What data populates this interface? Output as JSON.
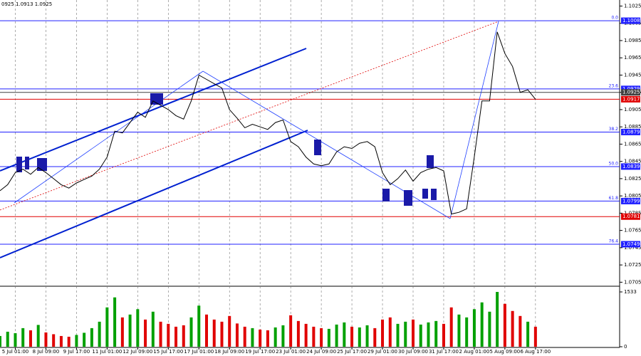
{
  "chart_data": {
    "type": "line",
    "header": "0925 1.0913 1.0925",
    "price": {
      "color": "#000000",
      "values": [
        1.0811,
        1.0818,
        1.0832,
        1.0836,
        1.083,
        1.0838,
        1.0832,
        1.0825,
        1.0818,
        1.0814,
        1.082,
        1.0824,
        1.0828,
        1.0836,
        1.085,
        1.088,
        1.0878,
        1.089,
        1.0902,
        1.0896,
        1.0915,
        1.091,
        1.0905,
        1.0898,
        1.0894,
        1.0915,
        1.0945,
        1.094,
        1.0935,
        1.093,
        1.0905,
        1.0895,
        1.0884,
        1.0888,
        1.0885,
        1.0882,
        1.089,
        1.0893,
        1.0868,
        1.0862,
        1.085,
        1.0842,
        1.084,
        1.0842,
        1.0856,
        1.0862,
        1.086,
        1.0866,
        1.0868,
        1.0862,
        1.0832,
        1.0818,
        1.0825,
        1.0835,
        1.0822,
        1.0832,
        1.0836,
        1.0838,
        1.0834,
        1.0784,
        1.0786,
        1.079,
        1.085,
        1.0915,
        1.0915,
        1.0995,
        1.097,
        1.0955,
        1.0925,
        1.0928,
        1.0917
      ]
    },
    "volume": {
      "up_color": "#00a000",
      "down_color": "#e00000",
      "values": [
        300,
        420,
        380,
        520,
        460,
        610,
        400,
        350,
        300,
        280,
        330,
        390,
        520,
        700,
        1100,
        1380,
        820,
        900,
        1050,
        760,
        980,
        700,
        640,
        560,
        600,
        820,
        1150,
        900,
        760,
        700,
        860,
        650,
        560,
        520,
        480,
        460,
        540,
        600,
        880,
        720,
        640,
        560,
        520,
        500,
        620,
        680,
        560,
        540,
        600,
        520,
        760,
        820,
        640,
        700,
        760,
        620,
        680,
        720,
        640,
        1100,
        900,
        820,
        1050,
        1240,
        980,
        1533,
        1200,
        1000,
        860,
        700,
        560
      ]
    },
    "xlim": [
      0,
      81
    ],
    "xticks": [
      {
        "value": 2,
        "label": "5 Jul 01:00"
      },
      {
        "value": 6,
        "label": "8 Jul 09:00"
      },
      {
        "value": 10,
        "label": "9 Jul 17:00"
      },
      {
        "value": 14,
        "label": "11 Jul 01:00"
      },
      {
        "value": 18,
        "label": "12 Jul 09:00"
      },
      {
        "value": 22,
        "label": "15 Jul 17:00"
      },
      {
        "value": 26,
        "label": "17 Jul 01:00"
      },
      {
        "value": 30,
        "label": "18 Jul 09:00"
      },
      {
        "value": 34,
        "label": "19 Jul 17:00"
      },
      {
        "value": 38,
        "label": "23 Jul 01:00"
      },
      {
        "value": 42,
        "label": "24 Jul 09:00"
      },
      {
        "value": 46,
        "label": "25 Jul 17:00"
      },
      {
        "value": 50,
        "label": "29 Jul 01:00"
      },
      {
        "value": 54,
        "label": "30 Jul 09:00"
      },
      {
        "value": 58,
        "label": "31 Jul 17:00"
      },
      {
        "value": 62,
        "label": "2 Aug 01:00"
      },
      {
        "value": 66,
        "label": "5 Aug 09:00"
      },
      {
        "value": 70,
        "label": "6 Aug 17:00"
      }
    ],
    "ylim": [
      1.0702,
      1.1032
    ],
    "yticks": [
      1.1025,
      1.1005,
      1.0985,
      1.0965,
      1.0945,
      1.0925,
      1.0905,
      1.0885,
      1.0865,
      1.0845,
      1.0825,
      1.0805,
      1.0785,
      1.0765,
      1.0745,
      1.0725,
      1.0705
    ],
    "vlim": [
      0,
      1533
    ],
    "vticks": [
      1533,
      0
    ],
    "levels": [
      {
        "price": 1.1008,
        "fib": "0.0",
        "color": "#2020ff"
      },
      {
        "price": 1.0929,
        "fib": "23.6",
        "color": "#2020ff"
      },
      {
        "price": 1.0925,
        "color": "#404040"
      },
      {
        "price": 1.0917,
        "color": "#e00000"
      },
      {
        "price": 1.0879,
        "fib": "38.2",
        "color": "#2020ff"
      },
      {
        "price": 1.0839,
        "fib": "50.0",
        "color": "#2020ff"
      },
      {
        "price": 1.0799,
        "fib": "61.8",
        "color": "#2020ff"
      },
      {
        "price": 1.0781,
        "color": "#e00000"
      },
      {
        "price": 1.0749,
        "fib": "76.4",
        "color": "#2020ff"
      }
    ]
  }
}
